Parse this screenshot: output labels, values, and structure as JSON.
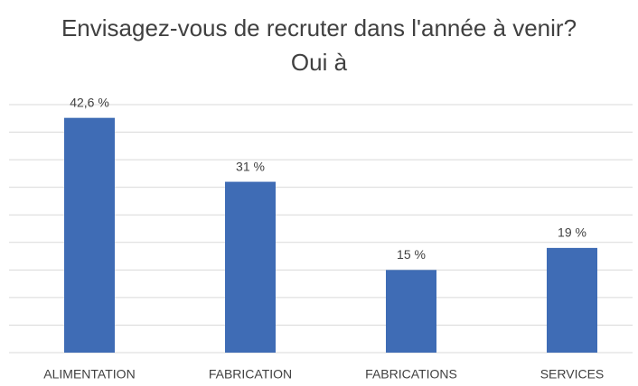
{
  "chart_data": {
    "type": "bar",
    "title": "Envisagez-vous de recruter dans l'année à venir? Oui à",
    "categories": [
      "ALIMENTATION",
      "FABRICATION",
      "FABRICATIONS",
      "SERVICES"
    ],
    "values": [
      42.6,
      31,
      15,
      19
    ],
    "value_labels": [
      "42,6 %",
      "31 %",
      "15 %",
      "19 %"
    ],
    "color": "#3f6cb5",
    "ylim": [
      0,
      45
    ],
    "yticks": [
      0,
      5,
      10,
      15,
      20,
      25,
      30,
      35,
      40,
      45
    ],
    "grid": true
  }
}
